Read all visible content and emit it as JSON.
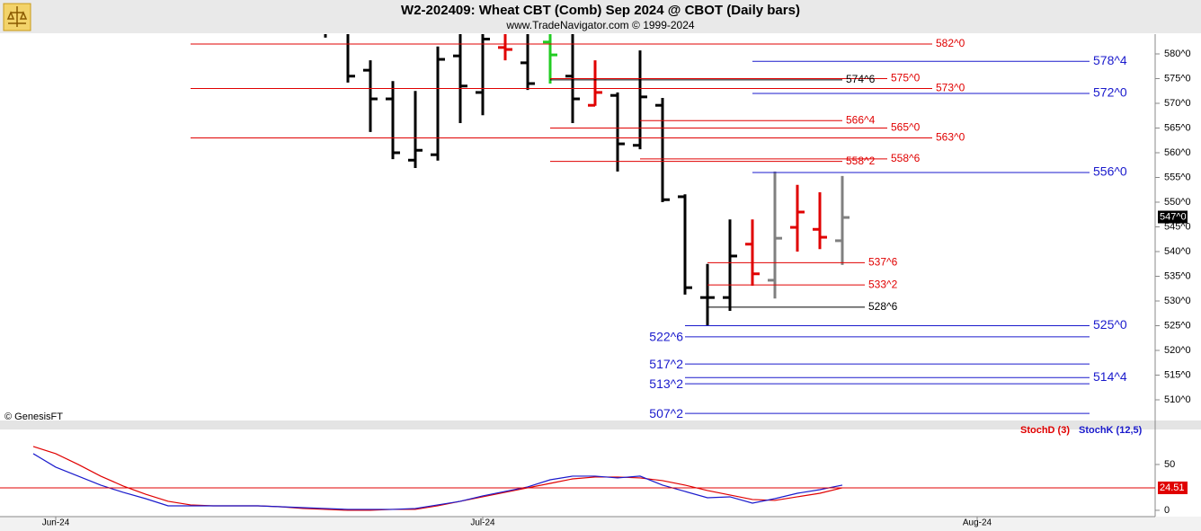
{
  "chart_data": [
    {
      "type": "ohlc",
      "title": "W2-202409:  Wheat CBT (Comb) Sep 2024 @ CBOT  (Daily bars)",
      "subtitle": "www.TradeNavigator.com © 1999-2024",
      "source": "© GenesisFT",
      "xlim": [
        -21.48,
        29.92
      ],
      "ylim": [
        505.82,
        584
      ],
      "yticks": [
        {
          "value": 580,
          "label": "580^0"
        },
        {
          "value": 575,
          "label": "575^0"
        },
        {
          "value": 570,
          "label": "570^0"
        },
        {
          "value": 565,
          "label": "565^0"
        },
        {
          "value": 560,
          "label": "560^0"
        },
        {
          "value": 555,
          "label": "555^0"
        },
        {
          "value": 550,
          "label": "550^0"
        },
        {
          "value": 545,
          "label": "545^0"
        },
        {
          "value": 540,
          "label": "540^0"
        },
        {
          "value": 535,
          "label": "535^0"
        },
        {
          "value": 530,
          "label": "530^0"
        },
        {
          "value": 525,
          "label": "525^0"
        },
        {
          "value": 520,
          "label": "520^0"
        },
        {
          "value": 515,
          "label": "515^0"
        },
        {
          "value": 510,
          "label": "510^0"
        }
      ],
      "last": {
        "value": 547,
        "label": "547^0"
      },
      "bars": {
        "x": [
          -7,
          -6,
          -5,
          -4,
          -3,
          -2,
          -1,
          0,
          1,
          2,
          3,
          4,
          5,
          6,
          7,
          8,
          9,
          10,
          11,
          12,
          13,
          14,
          15,
          16
        ],
        "open": [
          585,
          585,
          576.7,
          570.9,
          558.5,
          559.6,
          579.6,
          572.2,
          581.3,
          578.2,
          582.4,
          575.5,
          569.6,
          571.6,
          561.5,
          569.6,
          551.1,
          530.7,
          530.7,
          541.5,
          534.2,
          544.9,
          544.5,
          542.2
        ],
        "high": [
          586,
          586,
          578.7,
          574.5,
          572.5,
          581.5,
          586,
          586,
          584,
          585,
          586,
          586,
          578.7,
          572.2,
          580.7,
          571.1,
          551.6,
          537.5,
          546.5,
          546.5,
          556.2,
          553.5,
          552,
          555.3
        ],
        "low": [
          583.3,
          574.2,
          564.2,
          558.7,
          556.9,
          558.4,
          566,
          567.6,
          578.7,
          572.7,
          574,
          566,
          569.5,
          556.2,
          560.7,
          550,
          531.3,
          525.1,
          528,
          533.1,
          530.5,
          540,
          540.5,
          537.3
        ],
        "close": [
          584.5,
          575.5,
          570.9,
          560,
          560.5,
          578.9,
          573.5,
          583,
          580.9,
          574,
          579.8,
          570.9,
          572.2,
          561.8,
          571.3,
          550.5,
          532.7,
          530.7,
          539.1,
          535.5,
          542.7,
          548,
          542.9,
          546.9
        ],
        "colors": [
          "#000000",
          "#000000",
          "#000000",
          "#000000",
          "#000000",
          "#000000",
          "#000000",
          "#000000",
          "#e00000",
          "#000000",
          "#22cc22",
          "#000000",
          "#e00000",
          "#000000",
          "#000000",
          "#000000",
          "#000000",
          "#000000",
          "#000000",
          "#e00000",
          "#808080",
          "#e00000",
          "#e00000",
          "#808080"
        ]
      },
      "levels": [
        {
          "value": 582,
          "label": "582^0",
          "color": "#e00000",
          "x0": -13,
          "x1": 20,
          "side": "right"
        },
        {
          "value": 578.5,
          "label": "578^4",
          "color": "#1a1acc",
          "x0": 12,
          "x1": 27,
          "side": "right"
        },
        {
          "value": 575,
          "label": "575^0",
          "color": "#e00000",
          "x0": 3,
          "x1": 18,
          "side": "right"
        },
        {
          "value": 574.75,
          "label": "574^6",
          "color": "#000000",
          "x0": 3,
          "x1": 16,
          "side": "right"
        },
        {
          "value": 573,
          "label": "573^0",
          "color": "#e00000",
          "x0": -13,
          "x1": 20,
          "side": "right"
        },
        {
          "value": 572,
          "label": "572^0",
          "color": "#1a1acc",
          "x0": 12,
          "x1": 27,
          "side": "right"
        },
        {
          "value": 566.5,
          "label": "566^4",
          "color": "#e00000",
          "x0": 7,
          "x1": 16,
          "side": "right"
        },
        {
          "value": 565,
          "label": "565^0",
          "color": "#e00000",
          "x0": 3,
          "x1": 18,
          "side": "right"
        },
        {
          "value": 563,
          "label": "563^0",
          "color": "#e00000",
          "x0": -13,
          "x1": 20,
          "side": "right"
        },
        {
          "value": 558.75,
          "label": "558^6",
          "color": "#e00000",
          "x0": 7,
          "x1": 18,
          "side": "right"
        },
        {
          "value": 558.25,
          "label": "558^2",
          "color": "#e00000",
          "x0": 3,
          "x1": 16,
          "side": "right"
        },
        {
          "value": 556,
          "label": "556^0",
          "color": "#1a1acc",
          "x0": 12,
          "x1": 27,
          "side": "right"
        },
        {
          "value": 537.75,
          "label": "537^6",
          "color": "#e00000",
          "x0": 10,
          "x1": 17,
          "side": "right"
        },
        {
          "value": 533.25,
          "label": "533^2",
          "color": "#e00000",
          "x0": 10,
          "x1": 17,
          "side": "right"
        },
        {
          "value": 528.75,
          "label": "528^6",
          "color": "#000000",
          "x0": 10,
          "x1": 17,
          "side": "right"
        },
        {
          "value": 525,
          "label": "525^0",
          "color": "#1a1acc",
          "x0": 9,
          "x1": 27,
          "side": "right"
        },
        {
          "value": 522.75,
          "label": "522^6",
          "color": "#1a1acc",
          "x0": 9,
          "x1": 27,
          "side": "left"
        },
        {
          "value": 517.25,
          "label": "517^2",
          "color": "#1a1acc",
          "x0": 9,
          "x1": 27,
          "side": "left"
        },
        {
          "value": 514.5,
          "label": "514^4",
          "color": "#1a1acc",
          "x0": 9,
          "x1": 27,
          "side": "right"
        },
        {
          "value": 513.25,
          "label": "513^2",
          "color": "#1a1acc",
          "x0": 9,
          "x1": 27,
          "side": "left"
        },
        {
          "value": 507.25,
          "label": "507^2",
          "color": "#1a1acc",
          "x0": 9,
          "x1": 27,
          "side": "left"
        }
      ]
    },
    {
      "type": "line",
      "xlim": [
        -21.48,
        29.92
      ],
      "ylim": [
        -6.9,
        88.2
      ],
      "yticks": [
        50,
        0
      ],
      "xticks": [
        {
          "value": -19,
          "label": "Jun-24"
        },
        {
          "value": 0,
          "label": "Jul-24"
        },
        {
          "value": 22,
          "label": "Aug-24"
        }
      ],
      "x": [
        -20,
        -19,
        -18,
        -17,
        -16,
        -15,
        -14,
        -13,
        -12,
        -11,
        -10,
        -9,
        -8,
        -7,
        -6,
        -5,
        -4,
        -3,
        -2,
        -1,
        0,
        1,
        2,
        3,
        4,
        5,
        6,
        7,
        8,
        9,
        10,
        11,
        12,
        13,
        14,
        15,
        16
      ],
      "series": [
        {
          "name": "StochD (3)",
          "color": "#e00000",
          "values": [
            69.6,
            61.8,
            50,
            37.3,
            26.5,
            17.6,
            9.8,
            5.9,
            4.9,
            4.9,
            4.9,
            3.9,
            2.0,
            1.0,
            0,
            0,
            1.0,
            1.0,
            4.9,
            9.8,
            14.7,
            19.6,
            24.5,
            29.4,
            34.3,
            36.3,
            36.3,
            35.3,
            32.4,
            27.5,
            21.6,
            16.7,
            11.8,
            10.8,
            14.7,
            18.6,
            24.51
          ]
        },
        {
          "name": "StochK (12,5)",
          "color": "#1a1acc",
          "values": [
            61.8,
            47.1,
            37.3,
            27.5,
            19.6,
            12.7,
            4.9,
            4.9,
            4.9,
            4.9,
            4.9,
            3.9,
            2.9,
            2.0,
            1.0,
            1.0,
            1.0,
            2.0,
            5.9,
            9.8,
            15.7,
            20.6,
            25.5,
            33.3,
            37.3,
            37.3,
            35.3,
            37.3,
            27.5,
            20.6,
            13.7,
            14.7,
            7.8,
            12.7,
            18.6,
            22.5,
            27.5
          ]
        }
      ]
    }
  ]
}
